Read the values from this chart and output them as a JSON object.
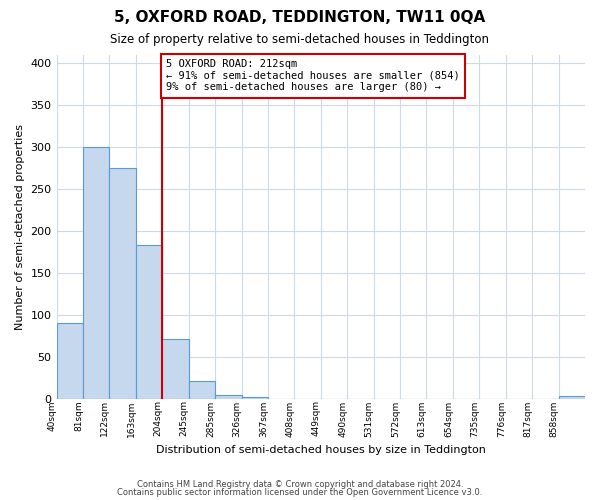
{
  "title": "5, OXFORD ROAD, TEDDINGTON, TW11 0QA",
  "subtitle": "Size of property relative to semi-detached houses in Teddington",
  "xlabel": "Distribution of semi-detached houses by size in Teddington",
  "ylabel": "Number of semi-detached properties",
  "bar_values": [
    90,
    300,
    275,
    183,
    71,
    21,
    5,
    2,
    0,
    0,
    0,
    0,
    0,
    0,
    0,
    0,
    0,
    0,
    0,
    3
  ],
  "all_labels": [
    "40sqm",
    "81sqm",
    "122sqm",
    "163sqm",
    "204sqm",
    "245sqm",
    "285sqm",
    "326sqm",
    "367sqm",
    "408sqm",
    "449sqm",
    "490sqm",
    "531sqm",
    "572sqm",
    "613sqm",
    "654sqm",
    "735sqm",
    "776sqm",
    "817sqm",
    "858sqm"
  ],
  "bar_color": "#c5d8ed",
  "bar_edge_color": "#5b9bd5",
  "red_line_x": 4.0,
  "annotation_text": "5 OXFORD ROAD: 212sqm\n← 91% of semi-detached houses are smaller (854)\n9% of semi-detached houses are larger (80) →",
  "annotation_box_edge": "#cc0000",
  "ylim": [
    0,
    410
  ],
  "yticks": [
    0,
    50,
    100,
    150,
    200,
    250,
    300,
    350,
    400
  ],
  "footer1": "Contains HM Land Registry data © Crown copyright and database right 2024.",
  "footer2": "Contains public sector information licensed under the Open Government Licence v3.0.",
  "background_color": "#ffffff",
  "grid_color": "#cddaeb"
}
